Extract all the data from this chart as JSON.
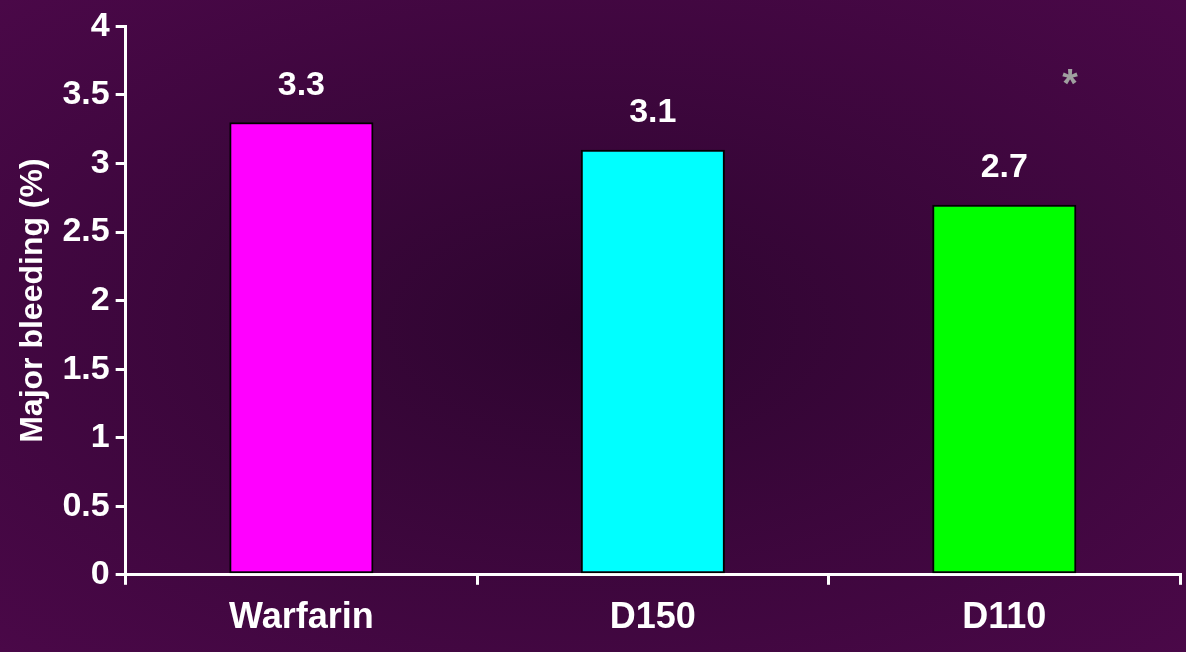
{
  "chart_data": {
    "type": "bar",
    "ylabel": "Major bleeding (%)",
    "categories": [
      "Warfarin",
      "D150",
      "D110"
    ],
    "values": [
      3.3,
      3.1,
      2.7
    ],
    "colors": [
      "#ff00ff",
      "#00ffff",
      "#00ff00"
    ],
    "ylim": [
      0,
      4
    ],
    "yticks": [
      0,
      {
        "value": 0.5,
        "label": "0.5"
      },
      1,
      {
        "value": 1.5,
        "label": "1.5"
      },
      2,
      {
        "value": 2.5,
        "label": "2.5"
      },
      3,
      {
        "value": 3.5,
        "label": "3.5"
      },
      4
    ],
    "grid": false,
    "legend": false,
    "data_labels": true,
    "annotations": [
      "*"
    ]
  }
}
